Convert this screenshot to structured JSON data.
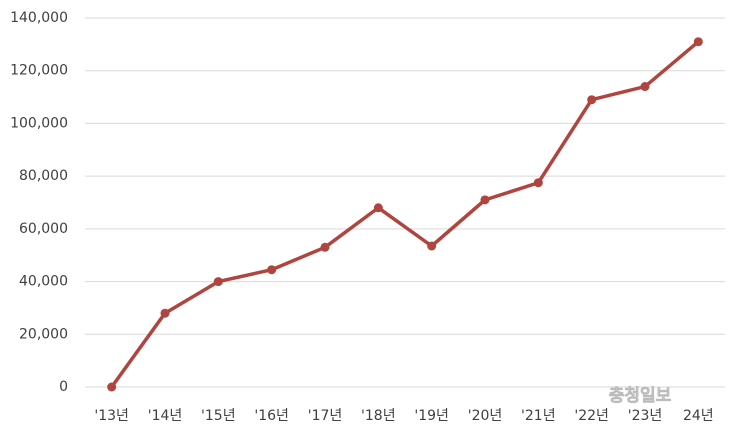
{
  "chart_data": {
    "type": "line",
    "categories": [
      "'13년",
      "'14년",
      "'15년",
      "'16년",
      "'17년",
      "'18년",
      "'19년",
      "'20년",
      "'21년",
      "'22년",
      "'23년",
      "24년"
    ],
    "series": [
      {
        "color": "#b0443f",
        "values": [
          0,
          28000,
          40000,
          44500,
          53000,
          68000,
          53500,
          71000,
          77500,
          109000,
          114000,
          131000
        ]
      }
    ],
    "ylim": [
      0,
      140000
    ],
    "yticks": [
      0,
      {
        "value": 20000,
        "label": "20,000"
      },
      {
        "value": 40000,
        "label": "40,000"
      },
      {
        "value": 60000,
        "label": "60,000"
      },
      {
        "value": 80000,
        "label": "80,000"
      },
      {
        "value": 100000,
        "label": "100,000"
      },
      {
        "value": 120000,
        "label": "120,000"
      },
      {
        "value": 140000,
        "label": "140,000"
      }
    ],
    "grid": true,
    "watermark": "충청일보"
  }
}
